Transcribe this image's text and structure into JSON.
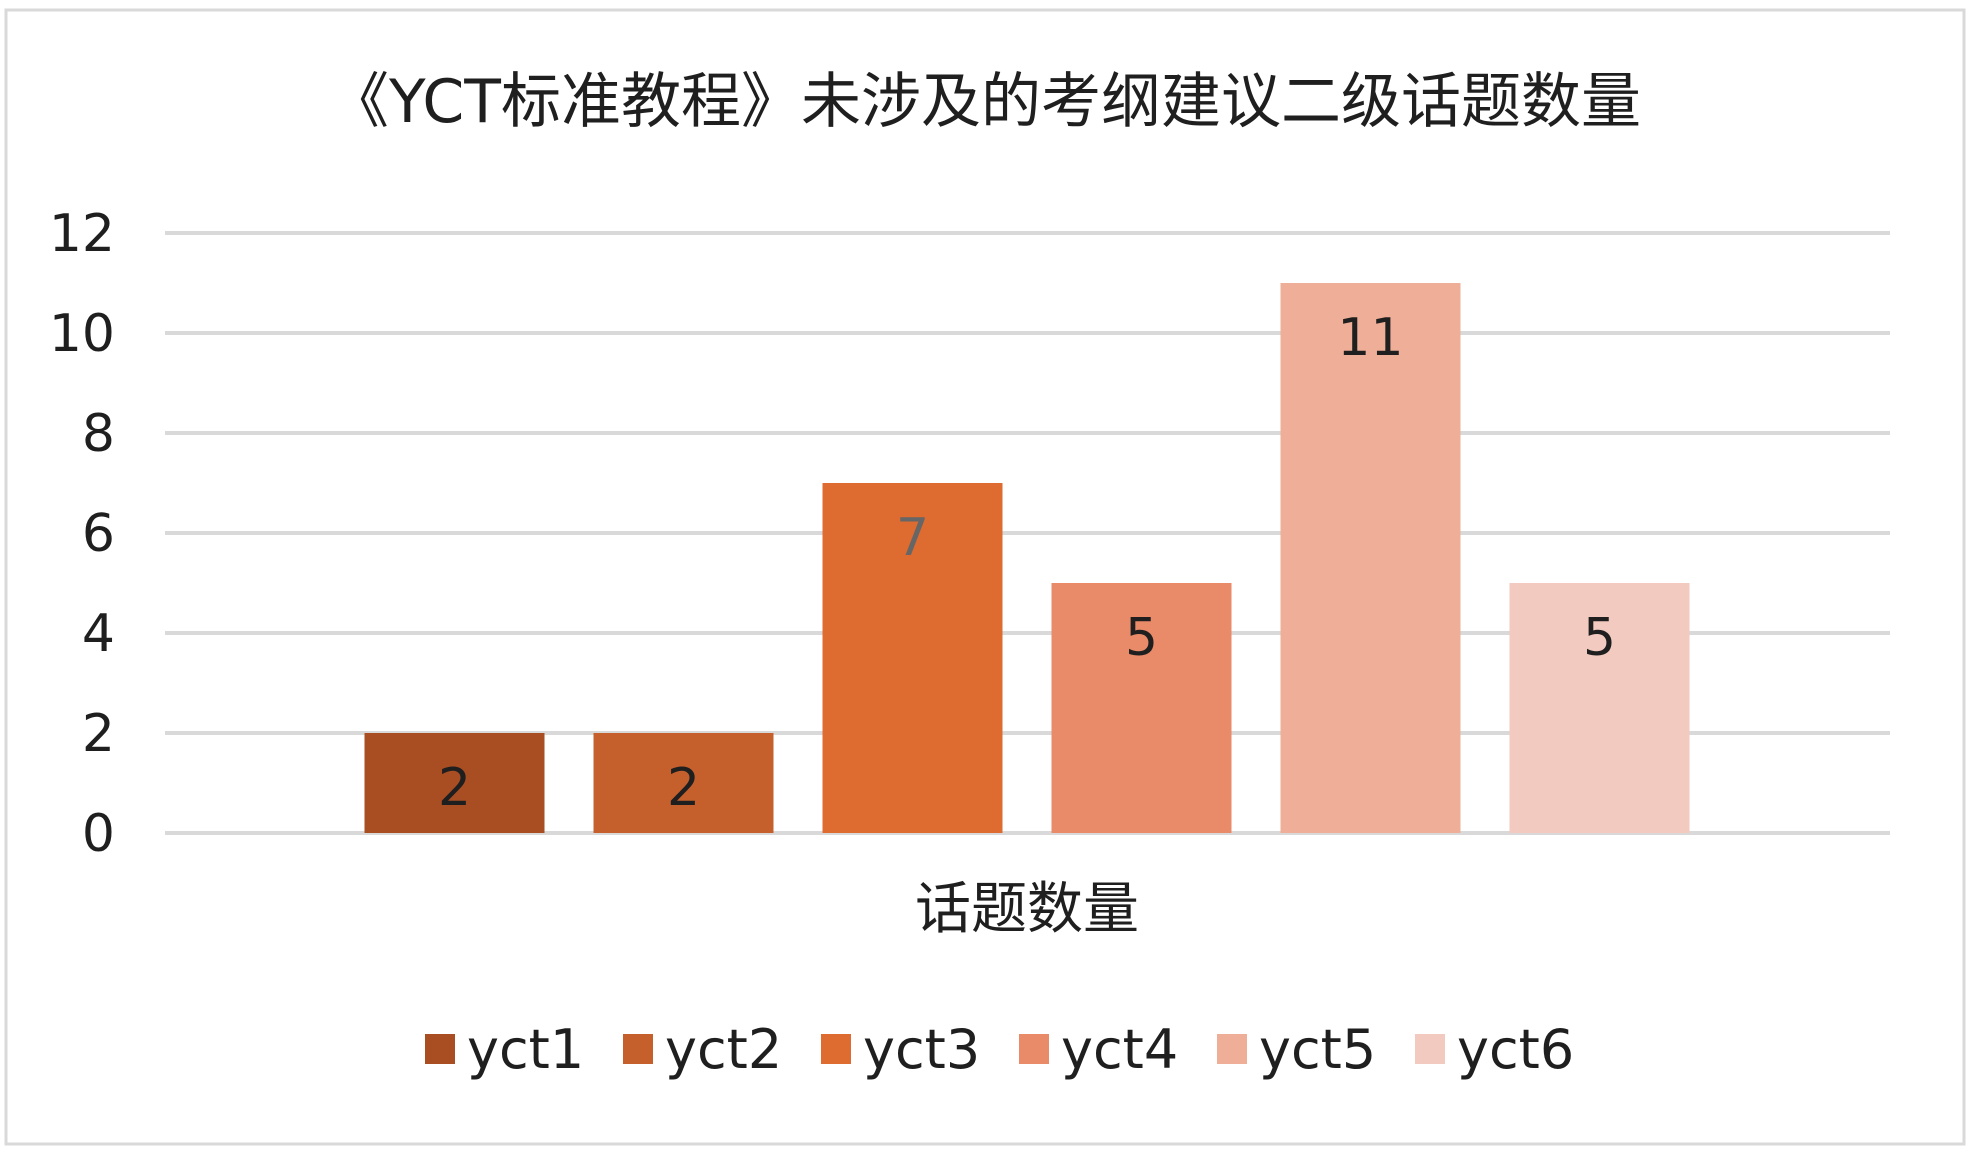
{
  "chart_data": {
    "type": "bar",
    "title": "《YCT标准教程》未涉及的考纲建议二级话题数量",
    "categories": [
      "话题数量"
    ],
    "series": [
      {
        "name": "yct1",
        "values": [
          2
        ],
        "color": "#A94E22"
      },
      {
        "name": "yct2",
        "values": [
          2
        ],
        "color": "#C5602C"
      },
      {
        "name": "yct3",
        "values": [
          7
        ],
        "color": "#DE6B30"
      },
      {
        "name": "yct4",
        "values": [
          5
        ],
        "color": "#E98A68"
      },
      {
        "name": "yct5",
        "values": [
          11
        ],
        "color": "#EFAE98"
      },
      {
        "name": "yct6",
        "values": [
          5
        ],
        "color": "#F2CABF"
      }
    ],
    "data_label_colors": [
      "#1f1f1f",
      "#1f1f1f",
      "#666666",
      "#1f1f1f",
      "#1f1f1f",
      "#1f1f1f"
    ],
    "ylim": [
      0,
      12
    ],
    "yticks": [
      0,
      2,
      4,
      6,
      8,
      10,
      12
    ],
    "grid": true,
    "legend": "bottom",
    "data_labels": true
  }
}
